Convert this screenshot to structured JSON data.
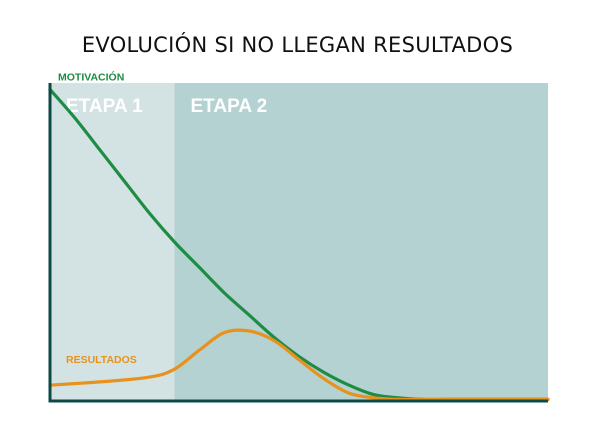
{
  "title": "EVOLUCIÓN SI NO LLEGAN RESULTADOS",
  "chart_data": {
    "type": "line",
    "title": "EVOLUCIÓN SI NO LLEGAN RESULTADOS",
    "xlabel": "",
    "ylabel": "",
    "x_range": [
      0,
      100
    ],
    "y_range": [
      0,
      100
    ],
    "grid": false,
    "stages": [
      {
        "label": "ETAPA 1",
        "x_start": 0,
        "x_end": 25,
        "color": "#d3e3e3"
      },
      {
        "label": "ETAPA 2",
        "x_start": 25,
        "x_end": 100,
        "color": "#b5d2d2"
      }
    ],
    "series": [
      {
        "name": "MOTIVACIÓN",
        "color": "#1e8c45",
        "points": [
          [
            0,
            98
          ],
          [
            5,
            89
          ],
          [
            10,
            79
          ],
          [
            15,
            69
          ],
          [
            20,
            59
          ],
          [
            25,
            50
          ],
          [
            30,
            42
          ],
          [
            35,
            34
          ],
          [
            40,
            27
          ],
          [
            45,
            20
          ],
          [
            50,
            14
          ],
          [
            55,
            9
          ],
          [
            60,
            5
          ],
          [
            65,
            2
          ],
          [
            70,
            1
          ],
          [
            75,
            0.5
          ],
          [
            80,
            0.5
          ],
          [
            90,
            0.5
          ],
          [
            100,
            0.5
          ]
        ]
      },
      {
        "name": "RESULTADOS",
        "color": "#e8921e",
        "points": [
          [
            0,
            5
          ],
          [
            10,
            6
          ],
          [
            20,
            7.5
          ],
          [
            25,
            10
          ],
          [
            30,
            16
          ],
          [
            35,
            21.5
          ],
          [
            40,
            22
          ],
          [
            45,
            19
          ],
          [
            50,
            13
          ],
          [
            55,
            7
          ],
          [
            60,
            2.5
          ],
          [
            65,
            1
          ],
          [
            70,
            0.5
          ],
          [
            80,
            0.5
          ],
          [
            90,
            0.5
          ],
          [
            100,
            0.5
          ]
        ]
      }
    ]
  },
  "colors": {
    "axis": "#0e4a45",
    "stage1_bg": "#d3e3e3",
    "stage2_bg": "#b5d2d2",
    "motivation": "#1e8c45",
    "results": "#e8921e"
  }
}
